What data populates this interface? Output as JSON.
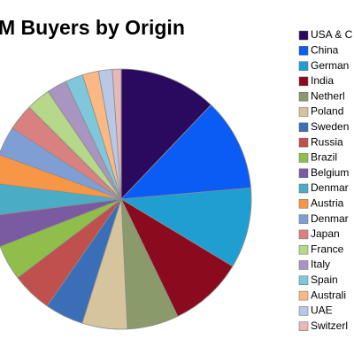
{
  "chart_data": {
    "type": "pie",
    "title": "M Buyers by Origin",
    "categories": [
      "USA & C",
      "China",
      "German",
      "India",
      "Netherl",
      "Poland",
      "Sweden",
      "Russia",
      "Brazil",
      "Belgium",
      "Denmar",
      "Austria",
      "Denmar",
      "Japan",
      "France",
      "Italy",
      "Spain",
      "Australi",
      "UAE",
      "Switzerl"
    ],
    "values": [
      12.1,
      11.5,
      10,
      9.2,
      6.4,
      5.6,
      4.8,
      5,
      4.4,
      3.9,
      4,
      3.6,
      3.6,
      3.3,
      3,
      2.5,
      2.2,
      2,
      1.7,
      1.1
    ],
    "colors": [
      "#2a0a5e",
      "#0a5cf5",
      "#1f9fd1",
      "#8b0a1e",
      "#8a9a6a",
      "#d6c49c",
      "#3a6fb8",
      "#c0504d",
      "#8fbe4a",
      "#7a5aa0",
      "#4bacc6",
      "#f79646",
      "#7f9fd4",
      "#d98080",
      "#b5d88a",
      "#a895c0",
      "#7fc8dc",
      "#fab884",
      "#b9c8e6",
      "#e6b9b8"
    ]
  }
}
